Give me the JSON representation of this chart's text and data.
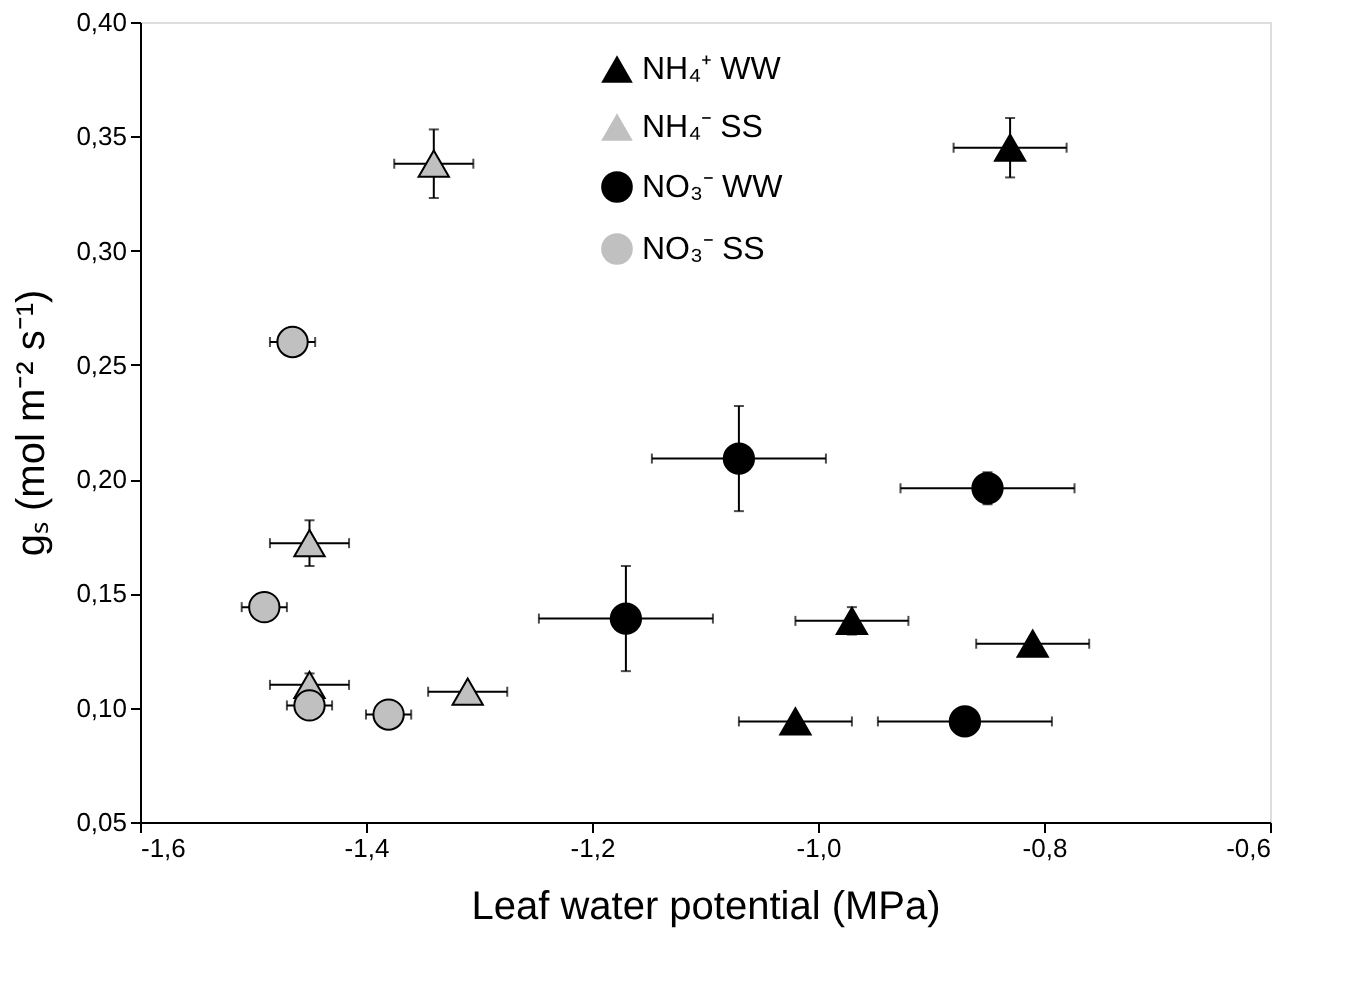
{
  "chart_data": {
    "type": "scatter",
    "xlabel": "Leaf water potential (MPa)",
    "ylabel": "gₛ (mol m⁻² s⁻¹)",
    "xlim": [
      -1.6,
      -0.6
    ],
    "ylim": [
      0.05,
      0.4
    ],
    "xticks": [
      {
        "value": -1.6,
        "label": "-1,6"
      },
      {
        "value": -1.4,
        "label": "-1,4"
      },
      {
        "value": -1.2,
        "label": "-1,2"
      },
      {
        "value": -1.0,
        "label": "-1,0"
      },
      {
        "value": -0.8,
        "label": "-0,8"
      },
      {
        "value": -0.6,
        "label": "-0,6"
      }
    ],
    "yticks": [
      {
        "value": 0.05,
        "label": "0,05"
      },
      {
        "value": 0.1,
        "label": "0,10"
      },
      {
        "value": 0.15,
        "label": "0,15"
      },
      {
        "value": 0.2,
        "label": "0,20"
      },
      {
        "value": 0.25,
        "label": "0,25"
      },
      {
        "value": 0.3,
        "label": "0,30"
      },
      {
        "value": 0.35,
        "label": "0,35"
      },
      {
        "value": 0.4,
        "label": "0,40"
      }
    ],
    "grid": false,
    "legend": "top",
    "series": [
      {
        "name": "NH₄⁺ WW",
        "color": "#000000",
        "marker": "triangle",
        "x": [
          -0.83,
          -1.02,
          -0.97,
          -0.81
        ],
        "values": [
          0.345,
          0.094,
          0.138,
          0.128
        ],
        "xerrors": [
          0.05,
          0.05,
          0.05,
          0.05
        ],
        "errors": [
          0.013,
          null,
          0.006,
          null
        ]
      },
      {
        "name": "NH₄⁻ SS",
        "color": "#c0c0c0",
        "marker": "triangle",
        "x": [
          -1.34,
          -1.45,
          -1.45,
          -1.31
        ],
        "values": [
          0.338,
          0.172,
          0.11,
          0.107
        ],
        "xerrors": [
          0.035,
          0.035,
          0.035,
          0.035
        ],
        "errors": [
          0.015,
          0.01,
          0.005,
          null
        ]
      },
      {
        "name": "NO₃⁻ WW",
        "color": "#000000",
        "marker": "circle",
        "x": [
          -1.07,
          -0.85,
          -1.17,
          -0.87
        ],
        "values": [
          0.209,
          0.196,
          0.139,
          0.094
        ],
        "xerrors": [
          0.077,
          0.077,
          0.077,
          0.077
        ],
        "errors": [
          0.023,
          0.007,
          0.023,
          null
        ]
      },
      {
        "name": "NO₃⁻ SS",
        "color": "#c0c0c0",
        "marker": "circle",
        "x": [
          -1.465,
          -1.49,
          -1.45,
          -1.38
        ],
        "values": [
          0.26,
          0.144,
          0.101,
          0.097
        ],
        "xerrors": [
          0.02,
          0.02,
          0.02,
          0.02
        ],
        "errors": [
          null,
          null,
          null,
          null
        ]
      }
    ]
  }
}
